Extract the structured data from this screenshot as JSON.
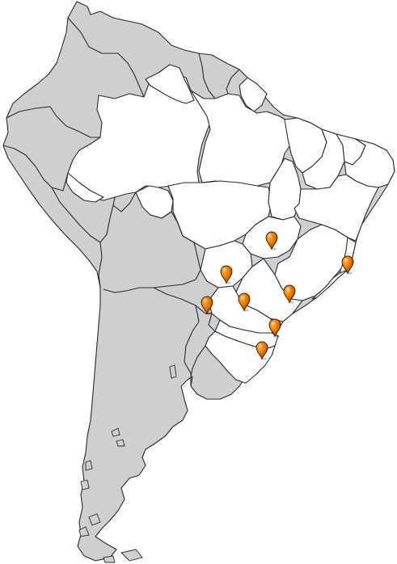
{
  "map": {
    "colors": {
      "land": "#cfcfcf",
      "highlight": "#ffffff",
      "border": "#2b2b2b",
      "pin": "#f07800"
    },
    "pins": [
      {
        "id": "pin-1"
      },
      {
        "id": "pin-2"
      },
      {
        "id": "pin-3"
      },
      {
        "id": "pin-4"
      },
      {
        "id": "pin-5"
      },
      {
        "id": "pin-6"
      },
      {
        "id": "pin-7"
      },
      {
        "id": "pin-8"
      },
      {
        "id": "pin-9"
      }
    ]
  }
}
